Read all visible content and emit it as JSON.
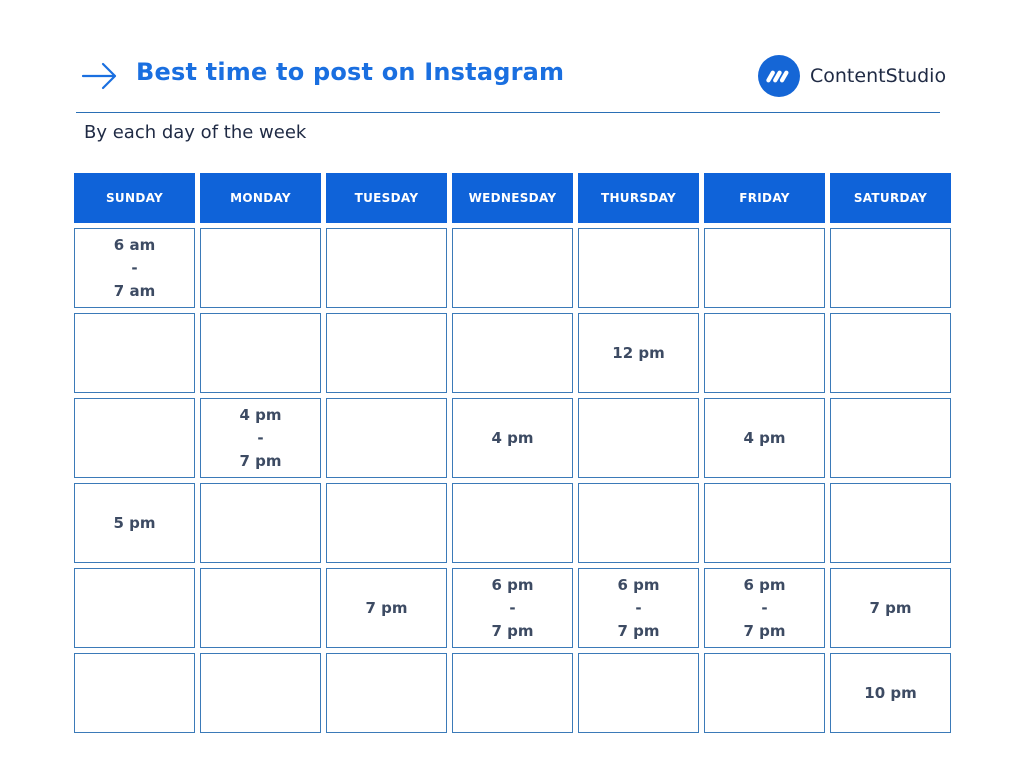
{
  "header": {
    "title": "Best time to post on Instagram",
    "subtitle": "By each day of the week",
    "brand": {
      "name": "ContentStudio",
      "logo_icon": "contentstudio-logo-icon",
      "arrow_icon": "arrow-right-icon"
    }
  },
  "colors": {
    "accent": "#1a6fe0",
    "header_bg": "#0f63d9",
    "cell_border": "#3b7ab8",
    "text_dark": "#1f2a44",
    "cell_text": "#3d4b63"
  },
  "schedule": {
    "days": [
      "SUNDAY",
      "MONDAY",
      "TUESDAY",
      "WEDNESDAY",
      "THURSDAY",
      "FRIDAY",
      "SATURDAY"
    ],
    "rows": [
      [
        [
          "6 am",
          "-",
          "7 am"
        ],
        [],
        [],
        [],
        [],
        [],
        []
      ],
      [
        [],
        [],
        [],
        [],
        [
          "12 pm"
        ],
        [],
        []
      ],
      [
        [],
        [
          "4 pm",
          "-",
          "7 pm"
        ],
        [],
        [
          "4 pm"
        ],
        [],
        [
          "4 pm"
        ],
        []
      ],
      [
        [
          "5 pm"
        ],
        [],
        [],
        [],
        [],
        [],
        []
      ],
      [
        [],
        [],
        [
          "7 pm"
        ],
        [
          "6 pm",
          "-",
          "7 pm"
        ],
        [
          "6 pm",
          "-",
          "7 pm"
        ],
        [
          "6 pm",
          "-",
          "7 pm"
        ],
        [
          "7 pm"
        ]
      ],
      [
        [],
        [],
        [],
        [],
        [],
        [],
        [
          "10 pm"
        ]
      ]
    ]
  }
}
